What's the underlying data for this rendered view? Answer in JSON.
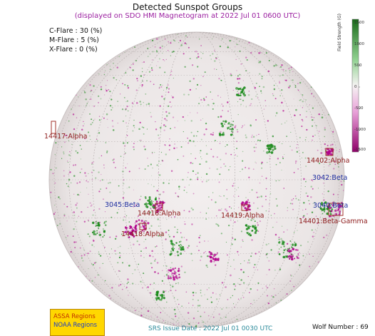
{
  "header": {
    "title": "Detected Sunspot Groups",
    "subtitle": "(displayed on SDO HMI Magnetogram at 2022 Jul 01 0600 UTC)"
  },
  "flares": [
    {
      "label": "C-Flare : 30 (%)"
    },
    {
      "label": "M-Flare :  5 (%)"
    },
    {
      "label": "X-Flare :  0 (%)"
    }
  ],
  "colorbar": {
    "label": "Field Strength (G)",
    "ticks": [
      "1500",
      "1000",
      "500",
      "0",
      "-500",
      "-1000",
      "-1500"
    ],
    "colors": {
      "positive": "#1a8a1a",
      "negative": "#b0008a",
      "zero": "#f4f0f0"
    }
  },
  "regions": [
    {
      "id": "r14417",
      "label": "14417:Alpha",
      "kind": "noaa"
    },
    {
      "id": "r14402",
      "label": "14402:Alpha",
      "kind": "noaa"
    },
    {
      "id": "r3042",
      "label": "3042:Beta",
      "kind": "assa"
    },
    {
      "id": "r3045",
      "label": "3045:Beta",
      "kind": "assa"
    },
    {
      "id": "r14416",
      "label": "14416:Alpha",
      "kind": "noaa"
    },
    {
      "id": "r14419",
      "label": "14419:Alpha",
      "kind": "noaa"
    },
    {
      "id": "r3040",
      "label": "3040:Beta",
      "kind": "assa"
    },
    {
      "id": "r14401",
      "label": "14401:Beta-Gamma",
      "kind": "noaa"
    },
    {
      "id": "r14418",
      "label": "14418:Alpha",
      "kind": "noaa"
    }
  ],
  "legend": {
    "assa": "ASSA Regions",
    "noaa": "NOAA Regions"
  },
  "footer": {
    "issue_date": "SRS Issue Date : 2022 Jul 01 0030 UTC",
    "wolf": "Wolf Number : 69"
  }
}
